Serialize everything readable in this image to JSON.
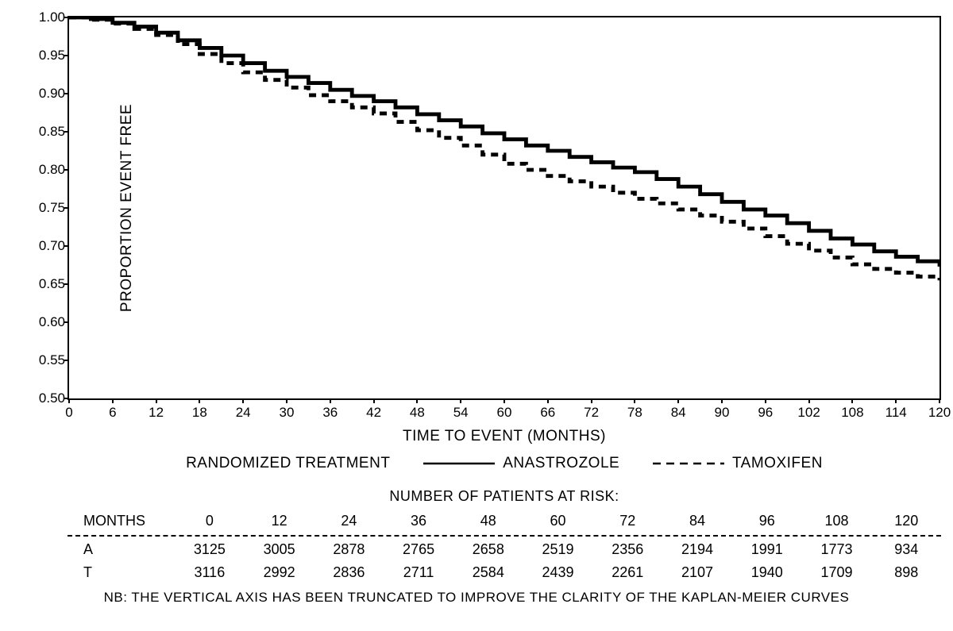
{
  "chart": {
    "type": "kaplan-meier",
    "ylabel": "PROPORTION EVENT FREE",
    "xlabel": "TIME TO EVENT (MONTHS)",
    "ylim": [
      0.5,
      1.0
    ],
    "xlim": [
      0,
      120
    ],
    "yticks": [
      0.5,
      0.55,
      0.6,
      0.65,
      0.7,
      0.75,
      0.8,
      0.85,
      0.9,
      0.95,
      1.0
    ],
    "xticks": [
      0,
      6,
      12,
      18,
      24,
      30,
      36,
      42,
      48,
      54,
      60,
      66,
      72,
      78,
      84,
      90,
      96,
      102,
      108,
      114,
      120
    ],
    "background_color": "#ffffff",
    "axis_color": "#000000",
    "tick_fontsize": 17,
    "label_fontsize": 19,
    "series": [
      {
        "name": "ANASTROZOLE",
        "line_style": "solid",
        "line_width": 2.2,
        "color": "#000000",
        "points": [
          [
            0,
            1.0
          ],
          [
            3,
            0.998
          ],
          [
            6,
            0.993
          ],
          [
            9,
            0.988
          ],
          [
            12,
            0.98
          ],
          [
            15,
            0.97
          ],
          [
            18,
            0.96
          ],
          [
            21,
            0.95
          ],
          [
            24,
            0.94
          ],
          [
            27,
            0.93
          ],
          [
            30,
            0.922
          ],
          [
            33,
            0.914
          ],
          [
            36,
            0.905
          ],
          [
            39,
            0.897
          ],
          [
            42,
            0.89
          ],
          [
            45,
            0.882
          ],
          [
            48,
            0.873
          ],
          [
            51,
            0.865
          ],
          [
            54,
            0.857
          ],
          [
            57,
            0.848
          ],
          [
            60,
            0.84
          ],
          [
            63,
            0.832
          ],
          [
            66,
            0.825
          ],
          [
            69,
            0.817
          ],
          [
            72,
            0.81
          ],
          [
            75,
            0.803
          ],
          [
            78,
            0.797
          ],
          [
            81,
            0.788
          ],
          [
            84,
            0.778
          ],
          [
            87,
            0.768
          ],
          [
            90,
            0.758
          ],
          [
            93,
            0.748
          ],
          [
            96,
            0.74
          ],
          [
            99,
            0.73
          ],
          [
            102,
            0.72
          ],
          [
            105,
            0.71
          ],
          [
            108,
            0.702
          ],
          [
            111,
            0.693
          ],
          [
            114,
            0.686
          ],
          [
            117,
            0.68
          ],
          [
            120,
            0.673
          ]
        ]
      },
      {
        "name": "TAMOXIFEN",
        "line_style": "dashed",
        "dash_pattern": "9,7",
        "line_width": 2.2,
        "color": "#000000",
        "points": [
          [
            0,
            1.0
          ],
          [
            3,
            0.997
          ],
          [
            6,
            0.992
          ],
          [
            9,
            0.985
          ],
          [
            12,
            0.977
          ],
          [
            15,
            0.965
          ],
          [
            18,
            0.952
          ],
          [
            21,
            0.94
          ],
          [
            24,
            0.928
          ],
          [
            27,
            0.918
          ],
          [
            30,
            0.908
          ],
          [
            33,
            0.898
          ],
          [
            36,
            0.89
          ],
          [
            39,
            0.882
          ],
          [
            42,
            0.874
          ],
          [
            45,
            0.863
          ],
          [
            48,
            0.852
          ],
          [
            51,
            0.842
          ],
          [
            54,
            0.832
          ],
          [
            57,
            0.82
          ],
          [
            60,
            0.808
          ],
          [
            63,
            0.8
          ],
          [
            66,
            0.792
          ],
          [
            69,
            0.785
          ],
          [
            72,
            0.778
          ],
          [
            75,
            0.77
          ],
          [
            78,
            0.762
          ],
          [
            81,
            0.756
          ],
          [
            84,
            0.748
          ],
          [
            87,
            0.74
          ],
          [
            90,
            0.732
          ],
          [
            93,
            0.723
          ],
          [
            96,
            0.713
          ],
          [
            99,
            0.703
          ],
          [
            102,
            0.694
          ],
          [
            105,
            0.685
          ],
          [
            108,
            0.676
          ],
          [
            111,
            0.67
          ],
          [
            114,
            0.665
          ],
          [
            117,
            0.66
          ],
          [
            120,
            0.655
          ]
        ]
      }
    ]
  },
  "legend": {
    "title": "RANDOMIZED TREATMENT",
    "items": [
      {
        "label": "ANASTROZOLE",
        "style": "solid"
      },
      {
        "label": "TAMOXIFEN",
        "style": "dashed"
      }
    ]
  },
  "risk_table": {
    "title": "NUMBER OF PATIENTS AT RISK:",
    "months_label": "MONTHS",
    "columns": [
      0,
      12,
      24,
      36,
      48,
      60,
      72,
      84,
      96,
      108,
      120
    ],
    "rows": [
      {
        "label": "A",
        "values": [
          3125,
          3005,
          2878,
          2765,
          2658,
          2519,
          2356,
          2194,
          1991,
          1773,
          934
        ]
      },
      {
        "label": "T",
        "values": [
          3116,
          2992,
          2836,
          2711,
          2584,
          2439,
          2261,
          2107,
          1940,
          1709,
          898
        ]
      }
    ]
  },
  "footnote": "NB: THE VERTICAL AXIS HAS BEEN TRUNCATED TO IMPROVE THE CLARITY OF THE KAPLAN-MEIER CURVES"
}
